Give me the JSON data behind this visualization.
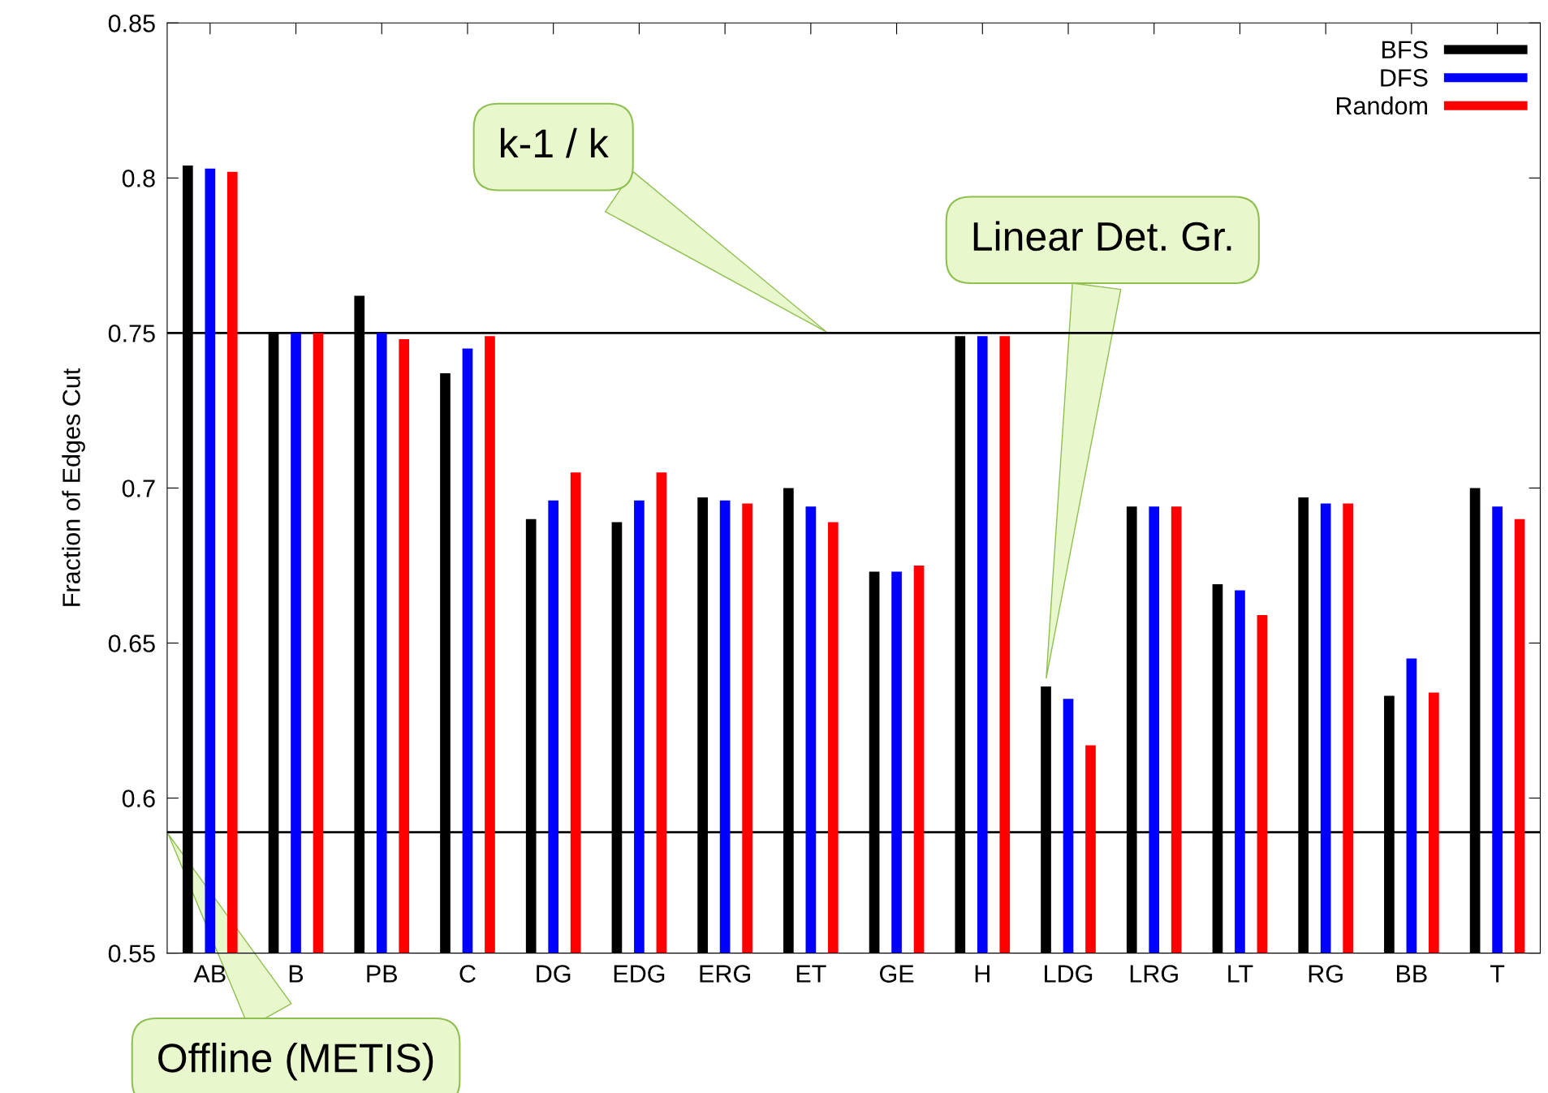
{
  "chart_data": {
    "type": "bar",
    "ylabel": "Fraction of Edges Cut",
    "categories": [
      "AB",
      "B",
      "PB",
      "C",
      "DG",
      "EDG",
      "ERG",
      "ET",
      "GE",
      "H",
      "LDG",
      "LRG",
      "LT",
      "RG",
      "BB",
      "T"
    ],
    "series": [
      {
        "name": "BFS",
        "color": "#000000",
        "values": [
          0.804,
          0.75,
          0.762,
          0.737,
          0.69,
          0.689,
          0.697,
          0.7,
          0.673,
          0.749,
          0.636,
          0.694,
          0.669,
          0.697,
          0.633,
          0.7
        ]
      },
      {
        "name": "DFS",
        "color": "#0000ff",
        "values": [
          0.803,
          0.75,
          0.75,
          0.745,
          0.696,
          0.696,
          0.696,
          0.694,
          0.673,
          0.749,
          0.632,
          0.694,
          0.667,
          0.695,
          0.645,
          0.694
        ]
      },
      {
        "name": "Random",
        "color": "#ff0000",
        "values": [
          0.802,
          0.75,
          0.748,
          0.749,
          0.705,
          0.705,
          0.695,
          0.689,
          0.675,
          0.749,
          0.617,
          0.694,
          0.659,
          0.695,
          0.634,
          0.69
        ]
      }
    ],
    "ylim": [
      0.55,
      0.85
    ],
    "yticks": [
      0.55,
      0.6,
      0.65,
      0.7,
      0.75,
      0.8,
      0.85
    ],
    "ref_lines": [
      {
        "axis": "y",
        "value": 0.75,
        "color": "#000000"
      },
      {
        "axis": "y",
        "value": 0.589,
        "color": "#000000"
      }
    ],
    "annotations": [
      "k-1 / k",
      "Linear Det. Gr.",
      "Offline (METIS)"
    ],
    "legend": "top right",
    "grid": false
  }
}
